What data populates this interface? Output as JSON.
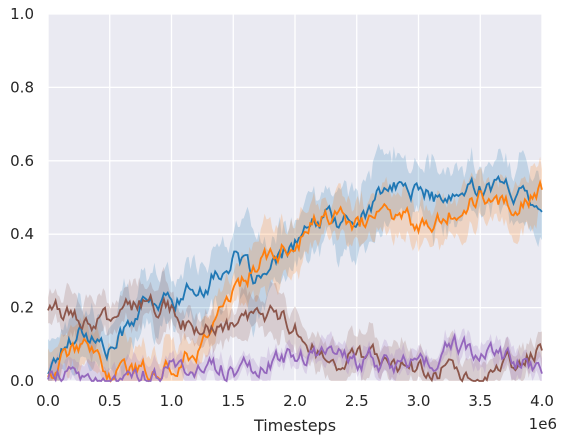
{
  "chart_data": {
    "type": "line",
    "title": "",
    "xlabel": "Timesteps",
    "ylabel": "",
    "x_offset_label": "1e6",
    "xlim": [
      0,
      4.0
    ],
    "ylim": [
      0,
      1.0
    ],
    "xticks": [
      "0.0",
      "0.5",
      "1.0",
      "1.5",
      "2.0",
      "2.5",
      "3.0",
      "3.5",
      "4.0"
    ],
    "yticks": [
      "0.0",
      "0.2",
      "0.4",
      "0.6",
      "0.8",
      "1.0"
    ],
    "grid": true,
    "legend": "none",
    "background_color": "#eaeaf2",
    "x": [
      0,
      0.25,
      0.5,
      0.75,
      1.0,
      1.25,
      1.5,
      1.75,
      2.0,
      2.25,
      2.5,
      2.75,
      3.0,
      3.25,
      3.5,
      3.75,
      4.0
    ],
    "series": [
      {
        "color": "#1f77b4",
        "values": [
          0.03,
          0.15,
          0.08,
          0.2,
          0.22,
          0.26,
          0.33,
          0.27,
          0.38,
          0.44,
          0.43,
          0.53,
          0.52,
          0.48,
          0.54,
          0.52,
          0.5
        ],
        "band": 0.08
      },
      {
        "color": "#ff7f0e",
        "values": [
          0.02,
          0.1,
          0.02,
          0.03,
          0.04,
          0.1,
          0.25,
          0.33,
          0.38,
          0.45,
          0.42,
          0.47,
          0.43,
          0.47,
          0.5,
          0.48,
          0.52
        ],
        "band": 0.06
      },
      {
        "color": "#8c564b",
        "values": [
          0.2,
          0.18,
          0.16,
          0.21,
          0.19,
          0.13,
          0.14,
          0.18,
          0.16,
          0.05,
          0.07,
          0.05,
          0.03,
          0.04,
          0.02,
          0.04,
          0.09
        ],
        "band": 0.05
      },
      {
        "color": "#9467bd",
        "values": [
          0.01,
          0.01,
          0.0,
          0.01,
          0.03,
          0.04,
          0.03,
          0.04,
          0.06,
          0.08,
          0.06,
          0.05,
          0.04,
          0.09,
          0.08,
          0.06,
          0.04
        ],
        "band": 0.03
      }
    ]
  }
}
